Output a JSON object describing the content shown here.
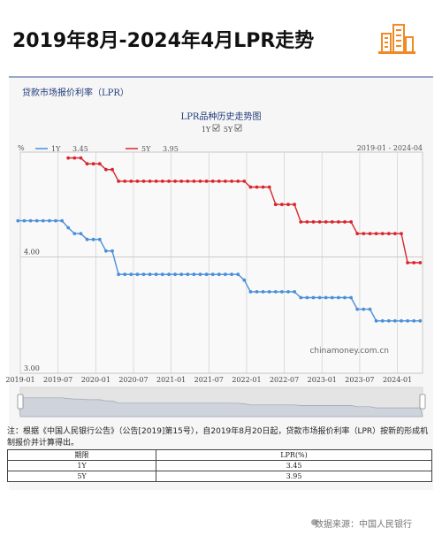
{
  "header": {
    "title": "2019年8月-2024年4月LPR走势"
  },
  "card": {
    "title": "贷款市场报价利率（LPR）"
  },
  "chart_data": {
    "type": "line",
    "title": "LPR品种历史走势图",
    "toggles": [
      "1Y",
      "5Y"
    ],
    "date_range": "2019-01 - 2024-04",
    "ylabel": "%",
    "watermark": "chinamoney.com.cn",
    "xlim": [
      "2019-01",
      "2024-05"
    ],
    "ylim": [
      3.0,
      4.9
    ],
    "yticks": [
      3.0,
      4.0
    ],
    "xticks": [
      "2019-01",
      "2019-07",
      "2020-01",
      "2020-07",
      "2021-01",
      "2021-07",
      "2022-01",
      "2022-07",
      "2023-01",
      "2023-07",
      "2024-01"
    ],
    "legend_placement": "top-left",
    "grid": true,
    "series": [
      {
        "name": "1Y",
        "latest": "3.45",
        "color": "#4a90d9",
        "steps": [
          [
            "2018-12-20",
            4.31
          ],
          [
            "2019-08-20",
            4.25
          ],
          [
            "2019-09-20",
            4.2
          ],
          [
            "2019-11-20",
            4.15
          ],
          [
            "2020-02-20",
            4.05
          ],
          [
            "2020-04-20",
            3.85
          ],
          [
            "2021-12-20",
            3.8
          ],
          [
            "2022-01-20",
            3.7
          ],
          [
            "2022-08-22",
            3.65
          ],
          [
            "2023-06-20",
            3.55
          ],
          [
            "2023-08-21",
            3.45
          ],
          [
            "2024-04-20",
            3.45
          ]
        ]
      },
      {
        "name": "5Y",
        "latest": "3.95",
        "color": "#d9262c",
        "steps": [
          [
            "2019-08-20",
            4.85
          ],
          [
            "2019-10-21",
            4.8
          ],
          [
            "2019-11-20",
            4.8
          ],
          [
            "2020-02-20",
            4.75
          ],
          [
            "2020-04-20",
            4.65
          ],
          [
            "2022-01-20",
            4.6
          ],
          [
            "2022-05-20",
            4.45
          ],
          [
            "2022-08-22",
            4.3
          ],
          [
            "2023-06-20",
            4.2
          ],
          [
            "2024-02-20",
            3.95
          ],
          [
            "2024-04-20",
            3.95
          ]
        ]
      }
    ]
  },
  "note": {
    "text": "注：根据《中国人民银行公告》（公告[2019]第15号），自2019年8月20日起，贷款市场报价利率（LPR）按新的形成机制报价并计算得出。"
  },
  "table": {
    "headers": [
      "期限",
      "LPR(%)"
    ],
    "rows": [
      [
        "1Y",
        "3.45"
      ],
      [
        "5Y",
        "3.95"
      ]
    ]
  },
  "source": {
    "text": "数据来源：中国人民银行"
  },
  "colors": {
    "blue": "#4a90d9",
    "red": "#d9262c",
    "logo": "#f08a24"
  }
}
